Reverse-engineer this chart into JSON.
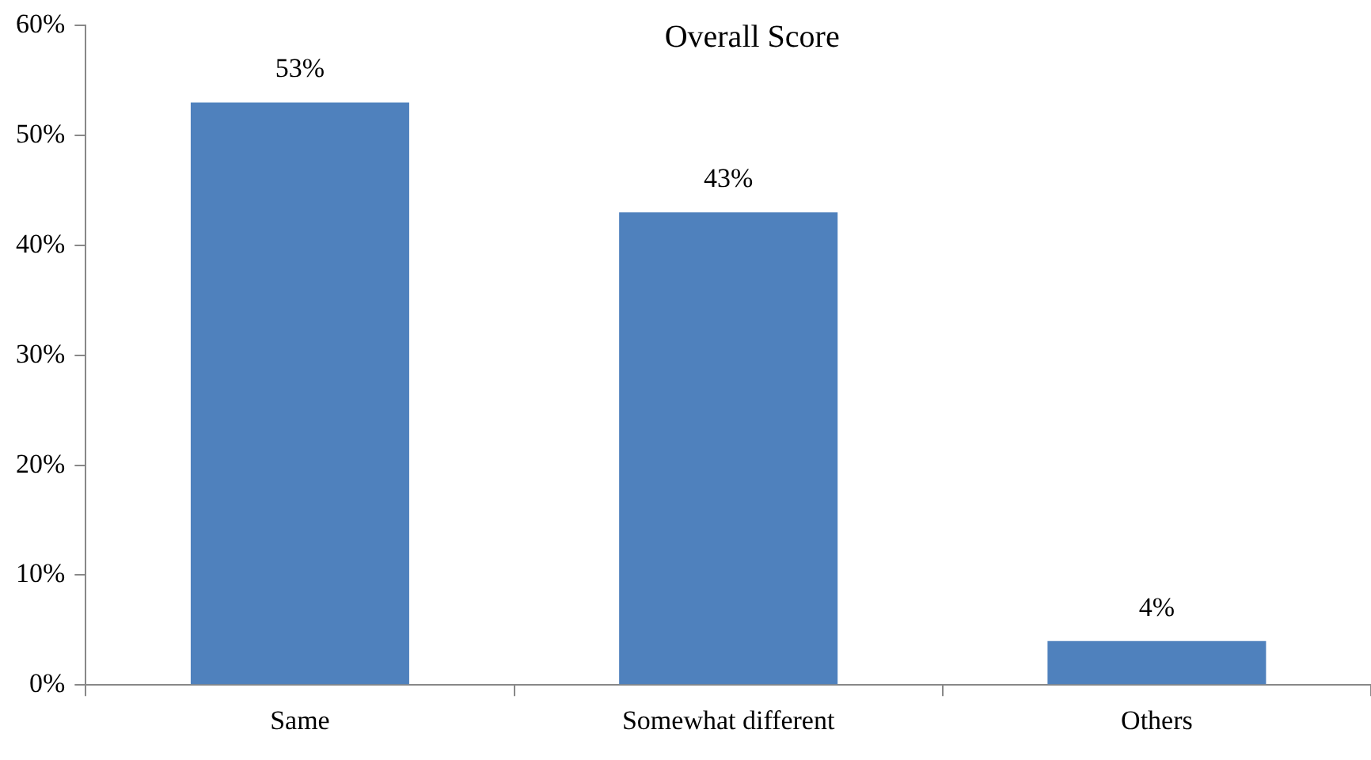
{
  "chart_data": {
    "type": "bar",
    "title": "Overall Score",
    "categories": [
      "Same",
      "Somewhat different",
      "Others"
    ],
    "values": [
      53,
      43,
      4
    ],
    "color": "#4f81bd",
    "value_labels": [
      "53%",
      "43%",
      "4%"
    ],
    "ylim": [
      0,
      60
    ],
    "yticks": [
      {
        "value": 0,
        "label": "0%"
      },
      {
        "value": 10,
        "label": "10%"
      },
      {
        "value": 20,
        "label": "20%"
      },
      {
        "value": 30,
        "label": "30%"
      },
      {
        "value": 40,
        "label": "40%"
      },
      {
        "value": 50,
        "label": "50%"
      },
      {
        "value": 60,
        "label": "60%"
      }
    ],
    "grid": false,
    "legend": false
  }
}
